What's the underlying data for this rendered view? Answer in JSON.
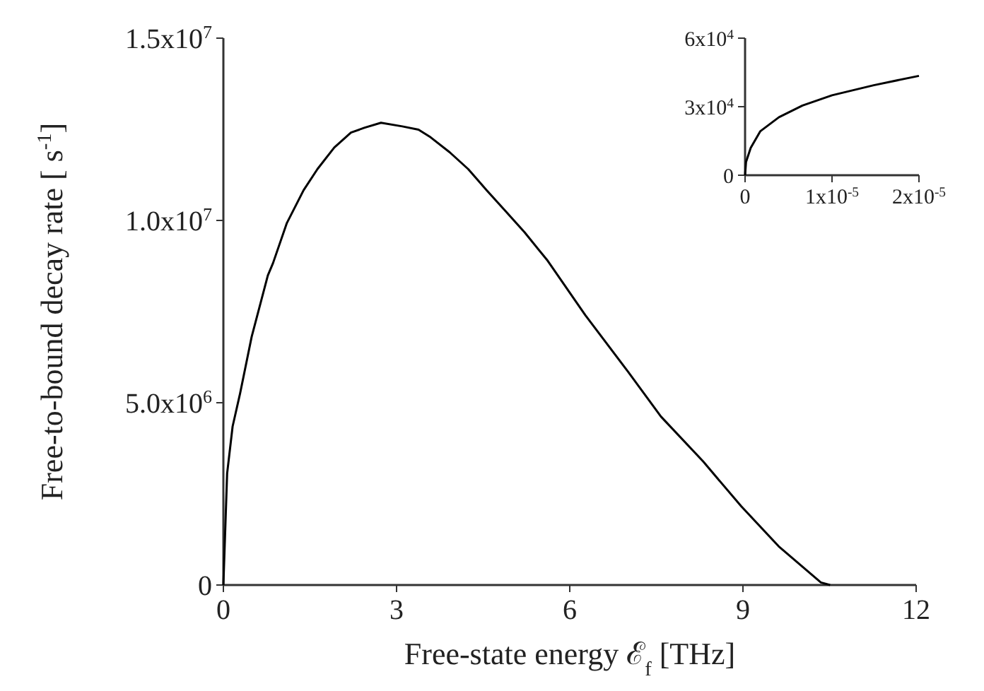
{
  "chart_data": [
    {
      "type": "line",
      "xlabel": "Free-state energy ℰ$_{f}$ [THz]",
      "ylabel": "Free-to-bound decay rate [ s$^{-1}$]",
      "color": "#000000",
      "xlim": [
        0,
        12
      ],
      "ylim": [
        0,
        15000000
      ],
      "xticks": [
        0,
        3,
        6,
        9,
        12
      ],
      "yticks": [
        0,
        {
          "value": 5000000,
          "label": "5.0x10$^{6}$"
        },
        {
          "value": 10000000,
          "label": "1.0x10$^{7}$"
        },
        {
          "value": 15000000,
          "label": "1.5x10$^{7}$"
        }
      ],
      "x": [
        0,
        0.065,
        0.16,
        0.29,
        0.49,
        0.77,
        0.86,
        1.1,
        1.39,
        1.63,
        1.92,
        2.21,
        2.44,
        2.73,
        3.1,
        3.38,
        3.59,
        3.92,
        4.24,
        4.56,
        4.89,
        5.22,
        5.62,
        6.27,
        7.01,
        7.58,
        8.31,
        8.97,
        9.62,
        10.35,
        10.51
      ],
      "values": [
        0,
        3060000,
        4350000,
        5260000,
        6810000,
        8490000,
        8830000,
        9930000,
        10830000,
        11410000,
        12000000,
        12410000,
        12540000,
        12680000,
        12580000,
        12490000,
        12280000,
        11870000,
        11410000,
        10830000,
        10250000,
        9670000,
        8890000,
        7400000,
        5850000,
        4620000,
        3390000,
        2160000,
        1060000,
        70000,
        0
      ]
    },
    {
      "type": "line",
      "color": "#000000",
      "xlim": [
        0,
        2e-05
      ],
      "ylim": [
        0,
        60000
      ],
      "xticks": [
        0,
        {
          "value": 1e-05,
          "label": "1x10$^{-5}$"
        },
        {
          "value": 2e-05,
          "label": "2x10$^{-5}$"
        }
      ],
      "yticks": [
        0,
        {
          "value": 30000,
          "label": "3x10$^{4}$"
        },
        {
          "value": 60000,
          "label": "6x10$^{4}$"
        }
      ],
      "x": [
        0,
        1.1e-07,
        6.5e-07,
        1.74e-06,
        3.9e-06,
        6.6e-06,
        1e-05,
        1.48e-05,
        2e-05
      ],
      "values": [
        0,
        5800,
        12000,
        19200,
        25400,
        30500,
        35000,
        39400,
        43500
      ]
    }
  ]
}
